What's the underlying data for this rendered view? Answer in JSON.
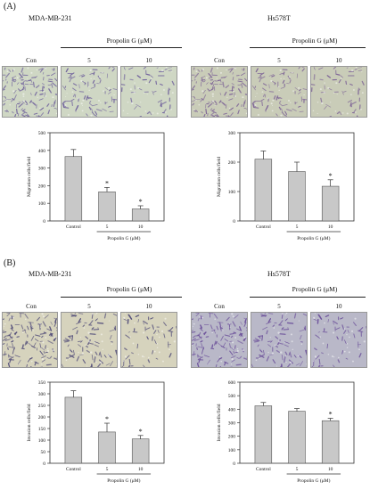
{
  "figure": {
    "panels": [
      {
        "letter": "(A)",
        "blocks": [
          {
            "cell_line": "MDA-MB-231",
            "treatment_label": "Propolin G (μM)",
            "image_labels": [
              "Con",
              "5",
              "10"
            ],
            "stain_colors": {
              "bg": "#cfd7c4",
              "stain": "#6a5a9a"
            },
            "chart_data": {
              "type": "bar",
              "categories": [
                "Control",
                "5",
                "10"
              ],
              "values": [
                365,
                165,
                68
              ],
              "errors": [
                40,
                25,
                18
              ],
              "significant": [
                false,
                true,
                true
              ],
              "ylabel": "Migration cells/field",
              "xlabel": "Propolin G (μM)",
              "ylim": [
                0,
                500
              ],
              "yticks": [
                0,
                100,
                200,
                300,
                400,
                500
              ],
              "bar_color": "#c8c8c8"
            }
          },
          {
            "cell_line": "Hs578T",
            "treatment_label": "Propolin G (μM)",
            "image_labels": [
              "Con",
              "5",
              "10"
            ],
            "stain_colors": {
              "bg": "#c9ccb8",
              "stain": "#7a5f95"
            },
            "chart_data": {
              "type": "bar",
              "categories": [
                "Control",
                "5",
                "10"
              ],
              "values": [
                210,
                168,
                118
              ],
              "errors": [
                28,
                32,
                22
              ],
              "significant": [
                false,
                false,
                true
              ],
              "ylabel": "Migration cells/field",
              "xlabel": "Propolin G (μM)",
              "ylim": [
                0,
                300
              ],
              "yticks": [
                0,
                100,
                200,
                300
              ],
              "bar_color": "#c8c8c8"
            }
          }
        ]
      },
      {
        "letter": "(B)",
        "blocks": [
          {
            "cell_line": "MDA-MB-231",
            "treatment_label": "Propolin G (μM)",
            "image_labels": [
              "Con",
              "5",
              "10"
            ],
            "stain_colors": {
              "bg": "#d6d3bd",
              "stain": "#4f4a78"
            },
            "chart_data": {
              "type": "bar",
              "categories": [
                "Control",
                "5",
                "10"
              ],
              "values": [
                285,
                135,
                105
              ],
              "errors": [
                28,
                38,
                15
              ],
              "significant": [
                false,
                true,
                true
              ],
              "ylabel": "Invasion cells/field",
              "xlabel": "Propolin G (μM)",
              "ylim": [
                0,
                350
              ],
              "yticks": [
                0,
                50,
                100,
                150,
                200,
                250,
                300,
                350
              ],
              "bar_color": "#c8c8c8"
            }
          },
          {
            "cell_line": "Hs578T",
            "treatment_label": "Propolin G (μM)",
            "image_labels": [
              "Con",
              "5",
              "10"
            ],
            "stain_colors": {
              "bg": "#b9b8c8",
              "stain": "#6b4f9a"
            },
            "chart_data": {
              "type": "bar",
              "categories": [
                "Control",
                "5",
                "10"
              ],
              "values": [
                425,
                385,
                315
              ],
              "errors": [
                25,
                20,
                18
              ],
              "significant": [
                false,
                false,
                true
              ],
              "ylabel": "Invasion cells/field",
              "xlabel": "Propolin G (μM)",
              "ylim": [
                0,
                600
              ],
              "yticks": [
                0,
                100,
                200,
                300,
                400,
                500,
                600
              ],
              "bar_color": "#c8c8c8"
            }
          }
        ]
      }
    ]
  }
}
